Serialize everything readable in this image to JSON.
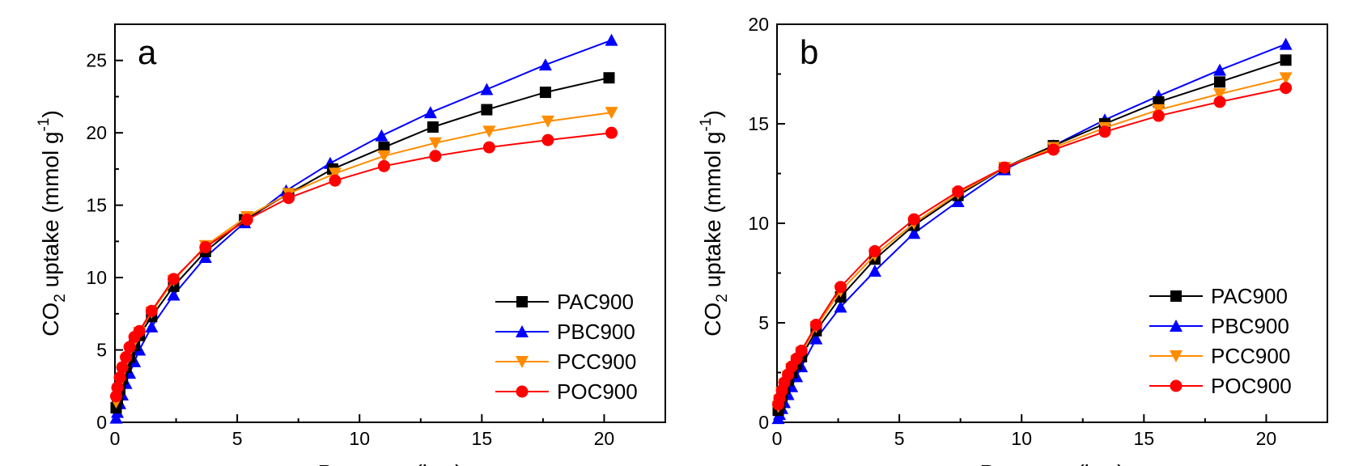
{
  "figure": {
    "panels": [
      "a",
      "b"
    ]
  },
  "chart_data": [
    {
      "type": "line",
      "panel_label": "a",
      "xlabel": "Pressure (bar)",
      "ylabel_main": "CO",
      "ylabel_sub": "2",
      "ylabel_rest": " uptake (mmol g",
      "ylabel_sup": "-1",
      "ylabel_end": ")",
      "xlim": [
        0,
        22.5
      ],
      "ylim": [
        0,
        27.5
      ],
      "xticks": [
        0,
        5,
        10,
        15,
        20
      ],
      "yticks": [
        0,
        5,
        10,
        15,
        20,
        25
      ],
      "legend_position": "bottom-right",
      "series": [
        {
          "name": "PAC900",
          "color": "#000000",
          "marker": "square",
          "x": [
            0.05,
            0.1,
            0.2,
            0.3,
            0.45,
            0.6,
            0.8,
            1.0,
            1.5,
            2.4,
            3.7,
            5.3,
            7.1,
            8.9,
            11.0,
            13.0,
            15.2,
            17.6,
            20.2
          ],
          "y": [
            1.0,
            1.6,
            2.3,
            3.0,
            3.8,
            4.5,
            5.3,
            6.0,
            7.3,
            9.4,
            11.8,
            14.0,
            15.8,
            17.5,
            19.0,
            20.4,
            21.6,
            22.8,
            23.8
          ]
        },
        {
          "name": "PBC900",
          "color": "#0000ff",
          "marker": "triangle-up",
          "x": [
            0.05,
            0.1,
            0.2,
            0.3,
            0.45,
            0.6,
            0.8,
            1.0,
            1.5,
            2.4,
            3.7,
            5.3,
            7.0,
            8.8,
            10.9,
            12.9,
            15.2,
            17.6,
            20.3
          ],
          "y": [
            0.3,
            0.7,
            1.3,
            1.9,
            2.7,
            3.4,
            4.2,
            5.0,
            6.6,
            8.8,
            11.4,
            13.8,
            16.0,
            17.9,
            19.8,
            21.4,
            23.0,
            24.7,
            26.4
          ]
        },
        {
          "name": "PCC900",
          "color": "#ff8c00",
          "marker": "triangle-down",
          "x": [
            0.05,
            0.1,
            0.2,
            0.3,
            0.45,
            0.6,
            0.8,
            1.0,
            1.5,
            2.4,
            3.7,
            5.4,
            7.1,
            9.0,
            11.0,
            13.1,
            15.3,
            17.7,
            20.3
          ],
          "y": [
            1.4,
            2.0,
            2.7,
            3.4,
            4.2,
            4.9,
            5.6,
            6.2,
            7.6,
            9.8,
            12.2,
            14.2,
            15.8,
            17.2,
            18.4,
            19.3,
            20.1,
            20.8,
            21.4
          ]
        },
        {
          "name": "POC900",
          "color": "#ff0000",
          "marker": "circle",
          "x": [
            0.05,
            0.1,
            0.2,
            0.3,
            0.45,
            0.6,
            0.8,
            1.0,
            1.5,
            2.4,
            3.7,
            5.4,
            7.1,
            9.0,
            11.0,
            13.1,
            15.3,
            17.7,
            20.3
          ],
          "y": [
            1.8,
            2.4,
            3.1,
            3.8,
            4.5,
            5.2,
            5.9,
            6.3,
            7.7,
            9.9,
            12.1,
            14.0,
            15.5,
            16.7,
            17.7,
            18.4,
            19.0,
            19.5,
            20.0
          ]
        }
      ]
    },
    {
      "type": "line",
      "panel_label": "b",
      "xlabel": "Pressure (bar)",
      "ylabel_main": "CO",
      "ylabel_sub": "2",
      "ylabel_rest": " uptake (mmol g",
      "ylabel_sup": "-1",
      "ylabel_end": ")",
      "xlim": [
        0,
        22.5
      ],
      "ylim": [
        0,
        20
      ],
      "xticks": [
        0,
        5,
        10,
        15,
        20
      ],
      "yticks": [
        0,
        5,
        10,
        15,
        20
      ],
      "legend_position": "bottom-right",
      "series": [
        {
          "name": "PAC900",
          "color": "#000000",
          "marker": "square",
          "x": [
            0.05,
            0.1,
            0.2,
            0.3,
            0.45,
            0.6,
            0.8,
            1.0,
            1.6,
            2.6,
            4.0,
            5.6,
            7.4,
            9.3,
            11.3,
            13.4,
            15.6,
            18.1,
            20.8
          ],
          "y": [
            0.6,
            0.9,
            1.3,
            1.7,
            2.1,
            2.5,
            2.9,
            3.3,
            4.6,
            6.3,
            8.2,
            9.9,
            11.4,
            12.8,
            13.9,
            15.0,
            16.1,
            17.1,
            18.2
          ]
        },
        {
          "name": "PBC900",
          "color": "#0000ff",
          "marker": "triangle-up",
          "x": [
            0.05,
            0.1,
            0.2,
            0.3,
            0.45,
            0.6,
            0.8,
            1.0,
            1.6,
            2.6,
            4.0,
            5.6,
            7.4,
            9.3,
            11.3,
            13.4,
            15.6,
            18.1,
            20.8
          ],
          "y": [
            0.2,
            0.4,
            0.7,
            1.0,
            1.4,
            1.8,
            2.3,
            2.8,
            4.2,
            5.8,
            7.6,
            9.5,
            11.1,
            12.7,
            13.9,
            15.2,
            16.4,
            17.7,
            19.0
          ]
        },
        {
          "name": "PCC900",
          "color": "#ff8c00",
          "marker": "triangle-down",
          "x": [
            0.05,
            0.1,
            0.2,
            0.3,
            0.45,
            0.6,
            0.8,
            1.0,
            1.6,
            2.6,
            4.0,
            5.6,
            7.4,
            9.3,
            11.3,
            13.4,
            15.6,
            18.1,
            20.8
          ],
          "y": [
            0.8,
            1.1,
            1.5,
            1.9,
            2.3,
            2.7,
            3.1,
            3.5,
            4.8,
            6.6,
            8.4,
            10.0,
            11.5,
            12.8,
            13.8,
            14.8,
            15.7,
            16.5,
            17.3
          ]
        },
        {
          "name": "POC900",
          "color": "#ff0000",
          "marker": "circle",
          "x": [
            0.05,
            0.1,
            0.2,
            0.3,
            0.45,
            0.6,
            0.8,
            1.0,
            1.6,
            2.6,
            4.0,
            5.6,
            7.4,
            9.3,
            11.3,
            13.4,
            15.6,
            18.1,
            20.8
          ],
          "y": [
            0.9,
            1.2,
            1.6,
            2.0,
            2.4,
            2.8,
            3.2,
            3.6,
            4.9,
            6.8,
            8.6,
            10.2,
            11.6,
            12.8,
            13.7,
            14.6,
            15.4,
            16.1,
            16.8
          ]
        }
      ]
    }
  ]
}
